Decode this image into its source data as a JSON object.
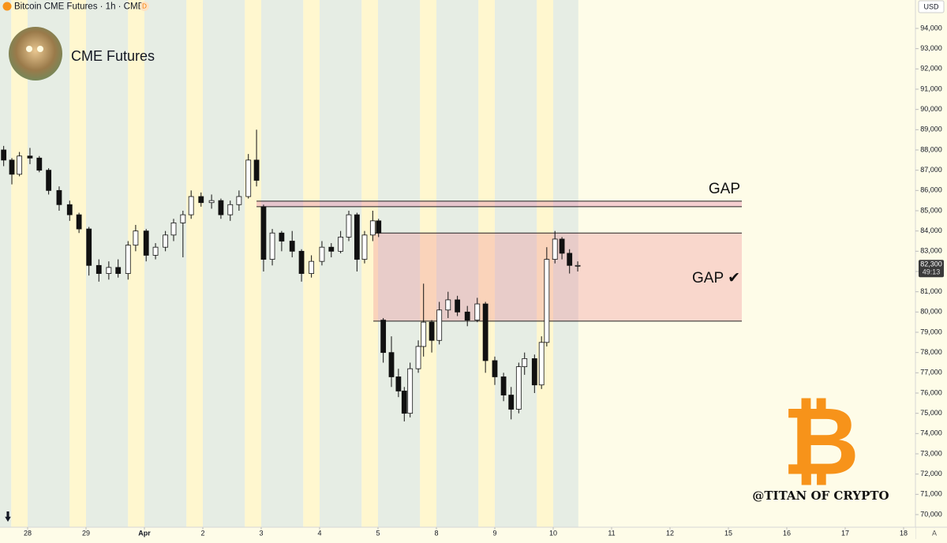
{
  "chart_data": {
    "type": "candlestick",
    "title": "Bitcoin CME Futures · 1h · CME",
    "badge": "D",
    "author": "CME Futures",
    "currency": "USD",
    "scale_mode": "A",
    "watermark": {
      "symbol": "₿",
      "handle": "@TITAN OF CRYPTO",
      "color": "#f7931a"
    },
    "up_color": "#ffffff",
    "down_color": "#111111",
    "wick_color": "#111111",
    "x": [
      -0.41,
      -0.27,
      -0.14,
      0.04,
      0.2,
      0.36,
      0.54,
      0.72,
      0.88,
      1.05,
      1.22,
      1.39,
      1.55,
      1.72,
      1.85,
      2.03,
      2.19,
      2.36,
      2.5,
      2.66,
      2.8,
      2.97,
      3.15,
      3.31,
      3.47,
      3.62,
      3.78,
      3.92,
      4.04,
      4.19,
      4.35,
      4.53,
      4.69,
      4.86,
      5.04,
      5.2,
      5.36,
      5.5,
      5.64,
      5.77,
      5.91,
      6.01,
      6.09,
      6.23,
      6.35,
      6.45,
      6.55,
      6.69,
      6.78,
      6.92,
      7.05,
      7.2,
      7.36,
      7.53,
      7.7,
      7.84,
      8.0,
      8.15,
      8.28,
      8.41,
      8.51,
      8.68,
      8.8,
      8.89,
      9.03,
      9.15,
      9.28,
      9.42
    ],
    "open": [
      88000,
      87500,
      86800,
      87700,
      87600,
      87000,
      86000,
      85300,
      84800,
      84100,
      82300,
      81900,
      82200,
      81900,
      83300,
      84000,
      82800,
      83200,
      83800,
      84400,
      84800,
      85700,
      85400,
      85500,
      84800,
      85300,
      85700,
      87500,
      85200,
      82600,
      83900,
      83500,
      83000,
      81900,
      82500,
      83200,
      83000,
      83700,
      84800,
      82600,
      83800,
      84500,
      79600,
      78000,
      76800,
      76100,
      75000,
      77200,
      78300,
      79500,
      78600,
      80100,
      80600,
      80000,
      79600,
      80400,
      77600,
      76800,
      75900,
      75200,
      77300,
      77700,
      76400,
      78500,
      82600,
      83600,
      82900,
      82300
    ],
    "high": [
      88200,
      87600,
      87900,
      88100,
      87700,
      87100,
      86200,
      85500,
      84900,
      84200,
      82600,
      82500,
      82600,
      83500,
      84300,
      84100,
      83400,
      84000,
      84600,
      85000,
      86000,
      85900,
      85800,
      85600,
      85500,
      86000,
      87800,
      89000,
      85300,
      84100,
      84000,
      84000,
      83100,
      82800,
      83500,
      83400,
      84000,
      85000,
      84900,
      84000,
      85000,
      84600,
      79700,
      78800,
      77200,
      76300,
      77500,
      78600,
      81400,
      79600,
      80500,
      81000,
      80800,
      80300,
      80700,
      80500,
      77800,
      77000,
      76300,
      77500,
      78000,
      77900,
      78800,
      83200,
      84000,
      83700,
      83100,
      82500
    ],
    "low": [
      87200,
      86300,
      86700,
      87300,
      86900,
      85800,
      85000,
      84500,
      83900,
      81800,
      81500,
      81600,
      81700,
      81600,
      83000,
      82500,
      82600,
      83000,
      83500,
      82700,
      84600,
      85200,
      85100,
      84600,
      84500,
      85000,
      85600,
      86200,
      82000,
      82300,
      83000,
      82700,
      81500,
      81700,
      82300,
      82700,
      82900,
      83500,
      82000,
      82400,
      83500,
      83700,
      77500,
      76300,
      75800,
      74600,
      74800,
      77000,
      77800,
      78000,
      78400,
      79700,
      79800,
      79300,
      79500,
      77000,
      76400,
      75600,
      74700,
      75000,
      76900,
      76000,
      76200,
      78300,
      82400,
      82600,
      81900,
      82000
    ],
    "close": [
      87500,
      86800,
      87700,
      87600,
      87000,
      86000,
      85300,
      84800,
      84100,
      82300,
      81900,
      82200,
      81900,
      83300,
      84000,
      82800,
      83200,
      83800,
      84400,
      84800,
      85700,
      85400,
      85500,
      84800,
      85300,
      85700,
      87500,
      86500,
      82600,
      83900,
      83500,
      83000,
      81900,
      82500,
      83200,
      83000,
      83700,
      84800,
      82600,
      83800,
      84500,
      83900,
      78000,
      76800,
      76100,
      75000,
      77200,
      78300,
      79500,
      78600,
      80100,
      80600,
      80000,
      79600,
      80400,
      77600,
      76800,
      75900,
      75200,
      77300,
      77700,
      76400,
      78500,
      82600,
      83600,
      82900,
      82300,
      82300
    ],
    "xlim": [
      -0.473,
      15.203
    ],
    "xticks": [
      {
        "value": 0,
        "label": "28"
      },
      {
        "value": 1,
        "label": "29"
      },
      {
        "value": 2,
        "label": "Apr"
      },
      {
        "value": 3,
        "label": "2"
      },
      {
        "value": 4,
        "label": "3"
      },
      {
        "value": 5,
        "label": "4"
      },
      {
        "value": 6,
        "label": "5"
      },
      {
        "value": 7,
        "label": "8"
      },
      {
        "value": 8,
        "label": "9"
      },
      {
        "value": 9,
        "label": "10"
      },
      {
        "value": 10,
        "label": "11"
      },
      {
        "value": 11,
        "label": "12"
      },
      {
        "value": 12,
        "label": "15"
      },
      {
        "value": 13,
        "label": "16"
      },
      {
        "value": 14,
        "label": "17"
      },
      {
        "value": 15,
        "label": "18"
      }
    ],
    "ylim": [
      69377,
      95402
    ],
    "yticks": [
      {
        "value": 70000,
        "label": "70,000"
      },
      {
        "value": 71000,
        "label": "71,000"
      },
      {
        "value": 72000,
        "label": "72,000"
      },
      {
        "value": 73000,
        "label": "73,000"
      },
      {
        "value": 74000,
        "label": "74,000"
      },
      {
        "value": 75000,
        "label": "75,000"
      },
      {
        "value": 76000,
        "label": "76,000"
      },
      {
        "value": 77000,
        "label": "77,000"
      },
      {
        "value": 78000,
        "label": "78,000"
      },
      {
        "value": 79000,
        "label": "79,000"
      },
      {
        "value": 80000,
        "label": "80,000"
      },
      {
        "value": 81000,
        "label": "81,000"
      },
      {
        "value": 82000,
        "label": "82,000"
      },
      {
        "value": 83000,
        "label": "83,000"
      },
      {
        "value": 84000,
        "label": "84,000"
      },
      {
        "value": 85000,
        "label": "85,000"
      },
      {
        "value": 86000,
        "label": "86,000"
      },
      {
        "value": 87000,
        "label": "87,000"
      },
      {
        "value": 88000,
        "label": "88,000"
      },
      {
        "value": 89000,
        "label": "89,000"
      },
      {
        "value": 90000,
        "label": "90,000"
      },
      {
        "value": 91000,
        "label": "91,000"
      },
      {
        "value": 92000,
        "label": "92,000"
      },
      {
        "value": 93000,
        "label": "93,000"
      },
      {
        "value": 94000,
        "label": "94,000"
      }
    ],
    "last_price": {
      "value": 82300,
      "label": "82,300",
      "countdown": "49:13"
    },
    "zones": [
      {
        "label": "GAP",
        "top": 85470,
        "bottom": 85200,
        "x_start": 3.92,
        "x_end": 12.23,
        "color": "rgba(226,120,160,0.35)"
      },
      {
        "label": "GAP ✔",
        "top": 83900,
        "bottom": 79550,
        "x_start": 5.92,
        "x_end": 12.23,
        "color": "rgba(240,130,140,0.3)"
      }
    ]
  }
}
